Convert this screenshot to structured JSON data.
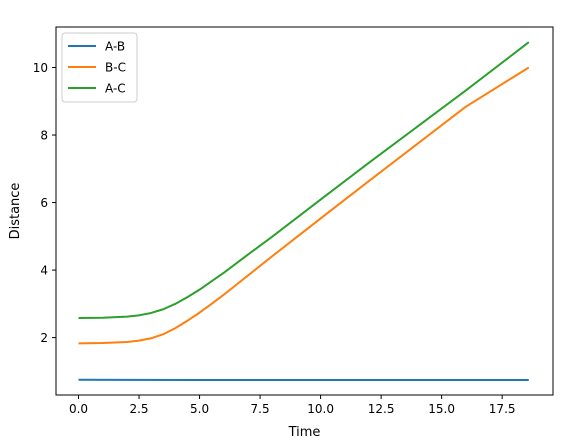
{
  "chart_data": {
    "type": "line",
    "title": "",
    "xlabel": "Time",
    "ylabel": "Distance",
    "xlim": [
      -0.93,
      19.6
    ],
    "ylim": [
      0.3,
      11.2
    ],
    "xticks": [
      0.0,
      2.5,
      5.0,
      7.5,
      10.0,
      12.5,
      15.0,
      17.5
    ],
    "xtick_labels": [
      "0.0",
      "2.5",
      "5.0",
      "7.5",
      "10.0",
      "12.5",
      "15.0",
      "17.5"
    ],
    "yticks": [
      2,
      4,
      6,
      8,
      10
    ],
    "ytick_labels": [
      "2",
      "4",
      "6",
      "8",
      "10"
    ],
    "grid": false,
    "legend": "top-left",
    "series": [
      {
        "name": "A-B",
        "color": "#1f77b4",
        "x": [
          0.0,
          5.0,
          10.0,
          18.6
        ],
        "y": [
          0.75,
          0.745,
          0.745,
          0.745
        ]
      },
      {
        "name": "B-C",
        "color": "#ff7f0e",
        "x": [
          0.0,
          1.0,
          2.0,
          2.5,
          3.0,
          3.5,
          4.0,
          4.5,
          5.0,
          5.5,
          6.0,
          7.0,
          8.0,
          10.0,
          12.0,
          14.0,
          16.0,
          18.6
        ],
        "y": [
          1.83,
          1.84,
          1.87,
          1.91,
          1.98,
          2.1,
          2.28,
          2.5,
          2.74,
          3.0,
          3.27,
          3.84,
          4.41,
          5.53,
          6.64,
          7.74,
          8.84,
          10.0
        ]
      },
      {
        "name": "A-C",
        "color": "#2ca02c",
        "x": [
          0.0,
          1.0,
          2.0,
          2.5,
          3.0,
          3.5,
          4.0,
          4.5,
          5.0,
          5.5,
          6.0,
          7.0,
          8.0,
          10.0,
          12.0,
          14.0,
          16.0,
          18.6
        ],
        "y": [
          2.58,
          2.59,
          2.62,
          2.66,
          2.73,
          2.84,
          3.0,
          3.2,
          3.42,
          3.67,
          3.92,
          4.46,
          4.99,
          6.09,
          7.18,
          8.25,
          9.32,
          10.75
        ]
      }
    ]
  }
}
